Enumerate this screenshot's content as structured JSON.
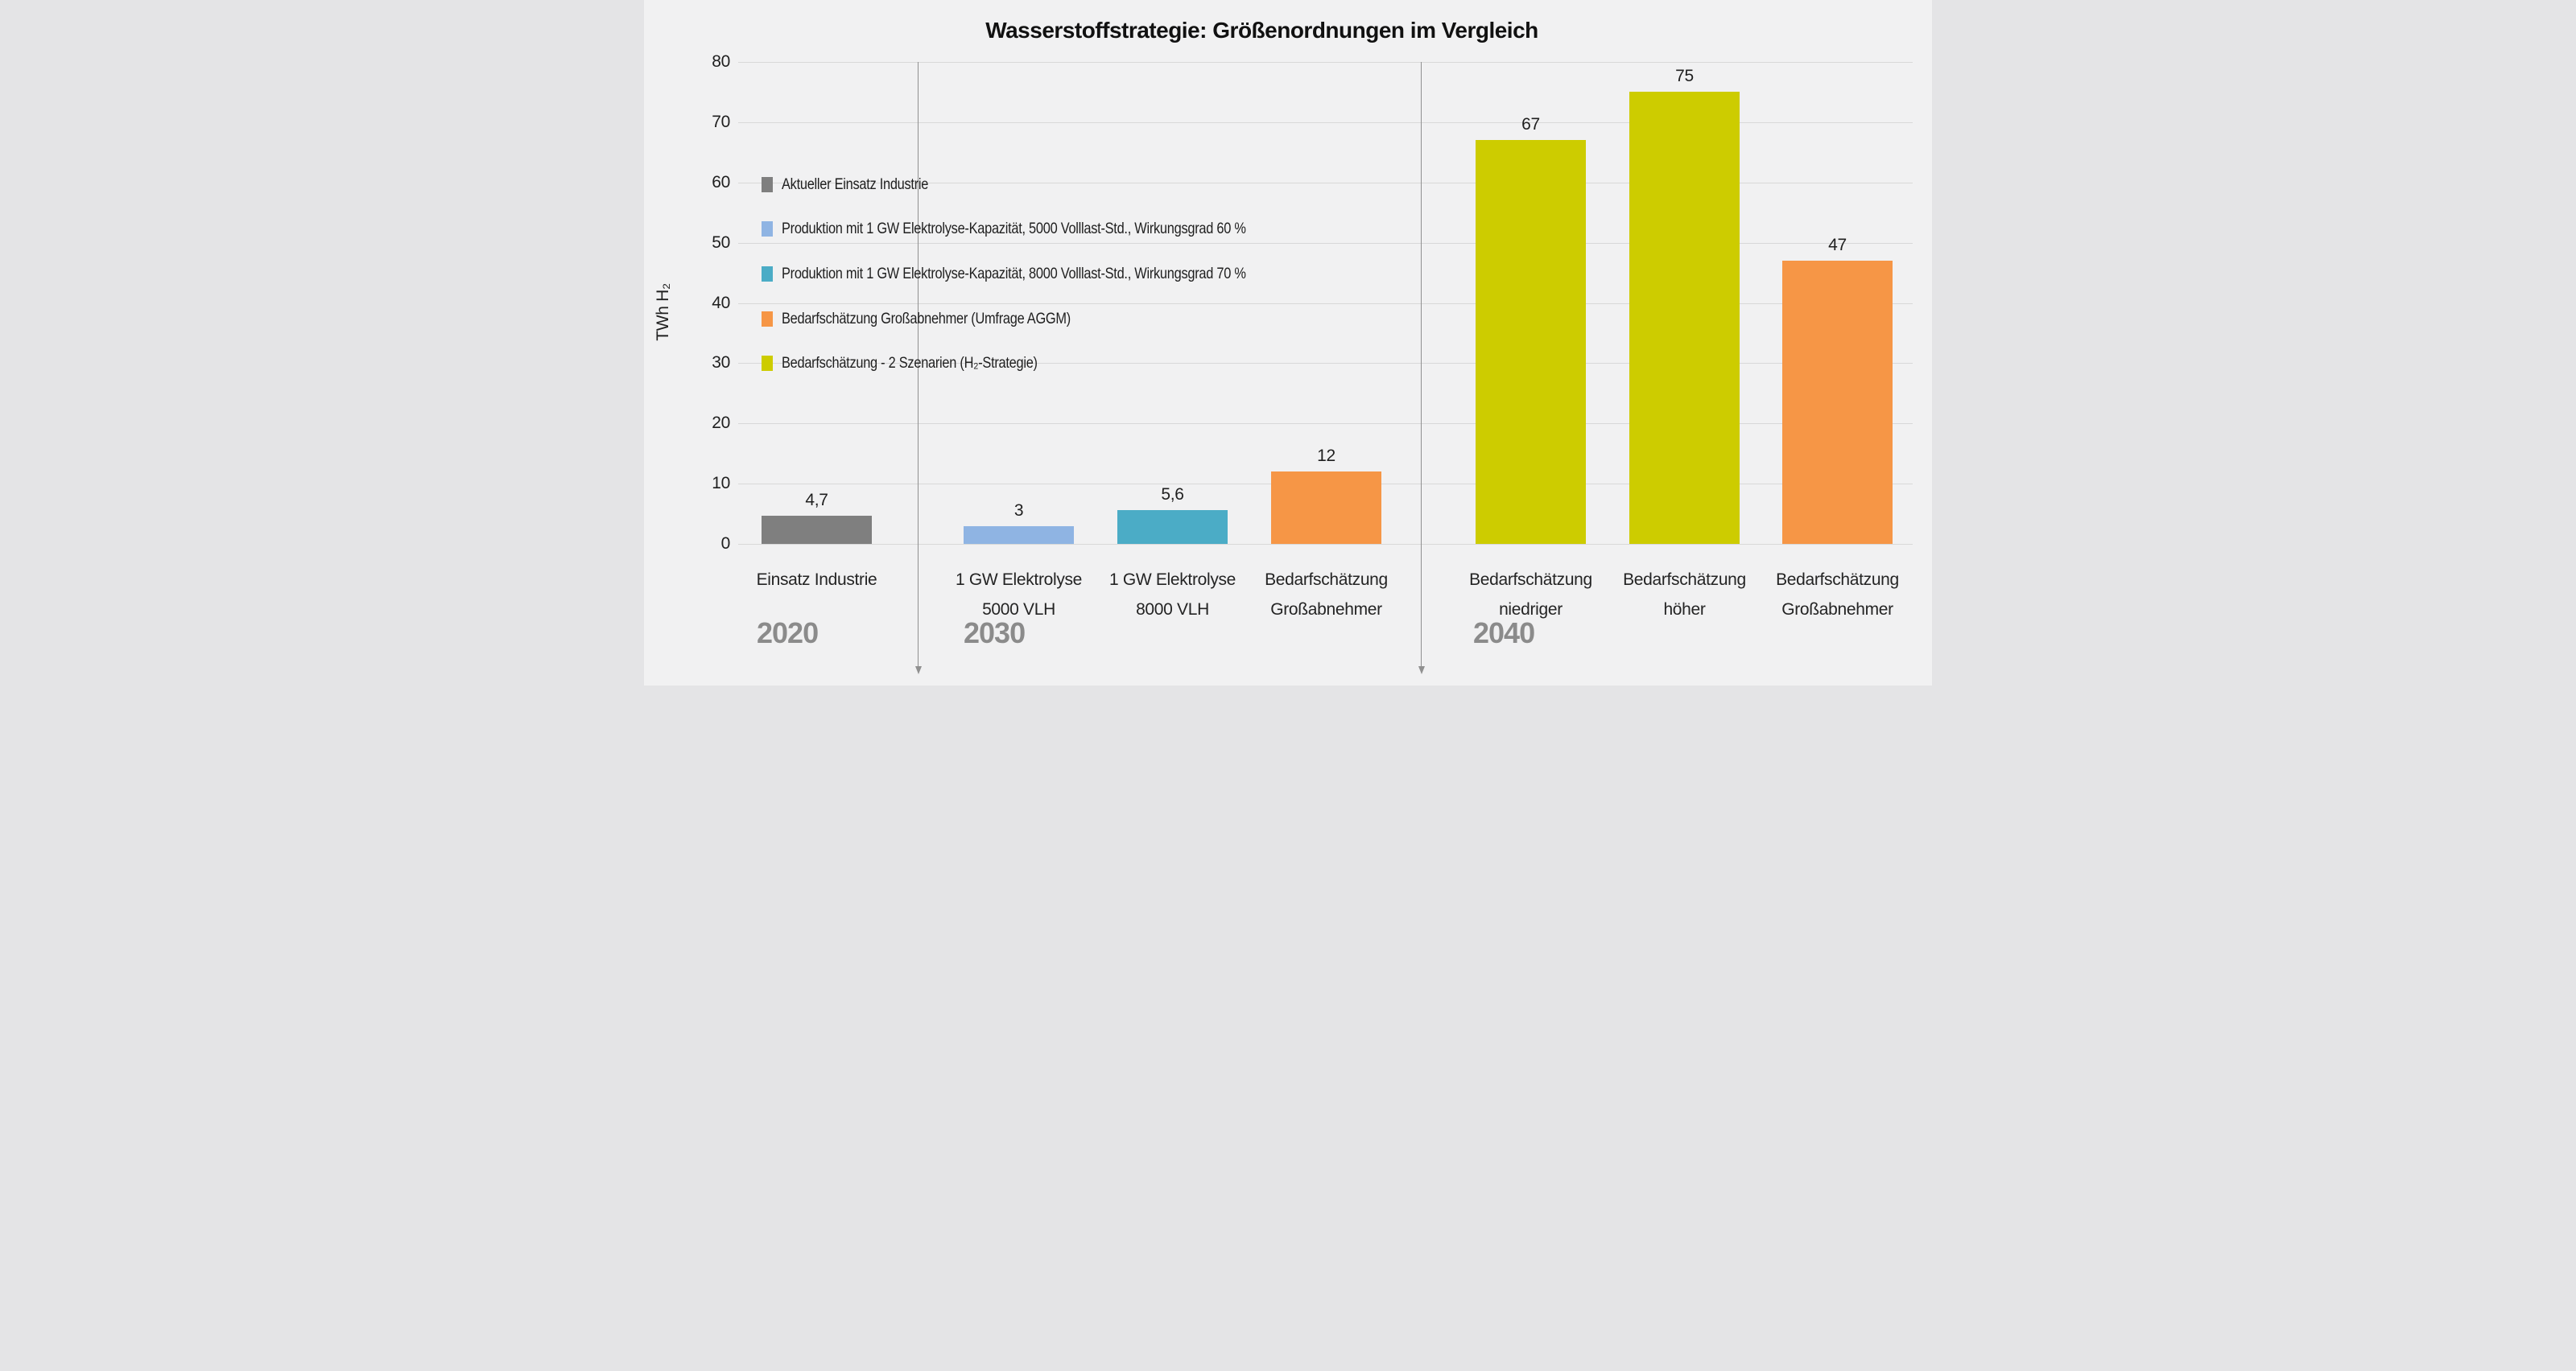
{
  "title": "Wasserstoffstrategie: Größenordnungen im Vergleich",
  "y_axis": {
    "label": "TWh H₂",
    "tick_values": [
      0,
      10,
      20,
      30,
      40,
      50,
      60,
      70,
      80
    ]
  },
  "legend": {
    "items": [
      {
        "label": "Aktueller Einsatz Industrie",
        "color": "#7f7f7f"
      },
      {
        "label": "Produktion mit 1 GW Elektrolyse-Kapazität, 5000 Volllast-Std., Wirkungsgrad 60 %",
        "color": "#8fb4e3"
      },
      {
        "label": "Produktion mit 1 GW Elektrolyse-Kapazität, 8000 Volllast-Std., Wirkungsgrad 70 %",
        "color": "#4bacc6"
      },
      {
        "label": "Bedarfschätzung Großabnehmer (Umfrage AGGM)",
        "color": "#f69646"
      },
      {
        "label": "Bedarfschätzung - 2 Szenarien (H₂-Strategie)",
        "color": "#cdcc00"
      }
    ]
  },
  "chart_data": {
    "type": "bar",
    "title": "Wasserstoffstrategie: Größenordnungen im Vergleich",
    "xlabel": "",
    "ylabel": "TWh H₂",
    "ylim": [
      0,
      80
    ],
    "yticks": [
      0,
      10,
      20,
      30,
      40,
      50,
      60,
      70,
      80
    ],
    "grid": true,
    "legend_position": "upper-left-inside",
    "decimal_separator": "comma",
    "groups": [
      {
        "year": "2020",
        "bars": [
          {
            "category": "Einsatz Industrie",
            "category_lines": [
              "Einsatz Industrie"
            ],
            "series": "Aktueller Einsatz Industrie",
            "value": 4.7,
            "value_label": "4,7",
            "color": "#7f7f7f"
          }
        ]
      },
      {
        "year": "2030",
        "bars": [
          {
            "category": "1 GW Elektrolyse 5000 VLH",
            "category_lines": [
              "1 GW Elektrolyse",
              "5000 VLH"
            ],
            "series": "Produktion mit 1 GW Elektrolyse-Kapazität, 5000 Volllast-Std., Wirkungsgrad 60 %",
            "value": 3,
            "value_label": "3",
            "color": "#8fb4e3"
          },
          {
            "category": "1 GW Elektrolyse 8000 VLH",
            "category_lines": [
              "1 GW Elektrolyse",
              "8000 VLH"
            ],
            "series": "Produktion mit 1 GW Elektrolyse-Kapazität, 8000 Volllast-Std., Wirkungsgrad 70 %",
            "value": 5.6,
            "value_label": "5,6",
            "color": "#4bacc6"
          },
          {
            "category": "Bedarfschätzung Großabnehmer",
            "category_lines": [
              "Bedarfschätzung",
              "Großabnehmer"
            ],
            "series": "Bedarfschätzung Großabnehmer (Umfrage AGGM)",
            "value": 12,
            "value_label": "12",
            "color": "#f69646"
          }
        ]
      },
      {
        "year": "2040",
        "bars": [
          {
            "category": "Bedarfschätzung niedriger",
            "category_lines": [
              "Bedarfschätzung",
              "niedriger"
            ],
            "series": "Bedarfschätzung - 2 Szenarien (H₂-Strategie)",
            "value": 67,
            "value_label": "67",
            "color": "#cdcc00"
          },
          {
            "category": "Bedarfschätzung höher",
            "category_lines": [
              "Bedarfschätzung",
              "höher"
            ],
            "series": "Bedarfschätzung - 2 Szenarien (H₂-Strategie)",
            "value": 75,
            "value_label": "75",
            "color": "#cdcc00"
          },
          {
            "category": "Bedarfschätzung Großabnehmer",
            "category_lines": [
              "Bedarfschätzung",
              "Großabnehmer"
            ],
            "series": "Bedarfschätzung Großabnehmer (Umfrage AGGM)",
            "value": 47,
            "value_label": "47",
            "color": "#f69646"
          }
        ]
      }
    ],
    "colors": {
      "background": "#f1f1f2",
      "gridline": "#d8d8d8",
      "divider": "#909090",
      "text": "#1f1f1f",
      "year_label": "#8b8b8b"
    }
  }
}
